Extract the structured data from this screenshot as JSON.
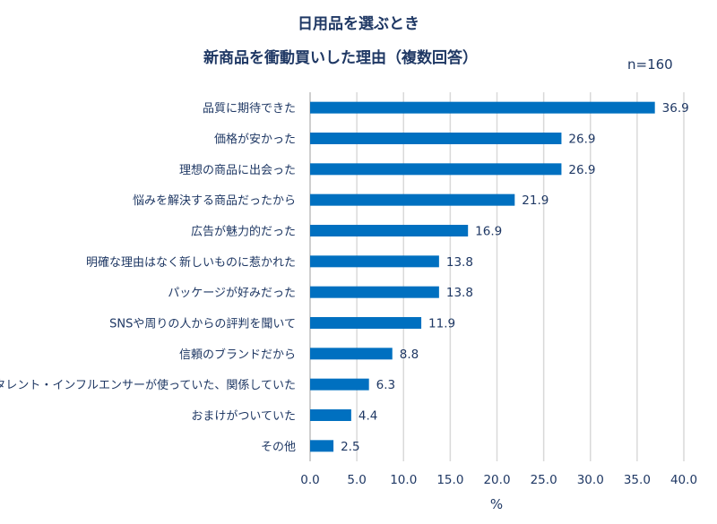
{
  "chart_data": {
    "type": "bar",
    "orientation": "horizontal",
    "title": "日用品を選ぶとき",
    "subtitle": "新商品を衝動買いした理由（複数回答）",
    "sample_size": "n=160",
    "xlabel": "%",
    "ylabel": "",
    "xlim": [
      0,
      40
    ],
    "xticks": [
      "0.0",
      "5.0",
      "10.0",
      "15.0",
      "20.0",
      "25.0",
      "30.0",
      "35.0",
      "40.0"
    ],
    "grid": "vertical",
    "legend": "none",
    "bar_color": "#0070c0",
    "categories": [
      "品質に期待できた",
      "価格が安かった",
      "理想の商品に出会った",
      "悩みを解決する商品だったから",
      "広告が魅力的だった",
      "明確な理由はなく新しいものに惹かれた",
      "パッケージが好みだった",
      "SNSや周りの人からの評判を聞いて",
      "信頼のブランドだから",
      "タレント・インフルエンサーが使っていた、関係していた",
      "おまけがついていた",
      "その他"
    ],
    "values": [
      36.9,
      26.9,
      26.9,
      21.9,
      16.9,
      13.8,
      13.8,
      11.9,
      8.8,
      6.3,
      4.4,
      2.5
    ],
    "data_labels": [
      "36.9",
      "26.9",
      "26.9",
      "21.9",
      "16.9",
      "13.8",
      "13.8",
      "11.9",
      "8.8",
      "6.3",
      "4.4",
      "2.5"
    ]
  }
}
